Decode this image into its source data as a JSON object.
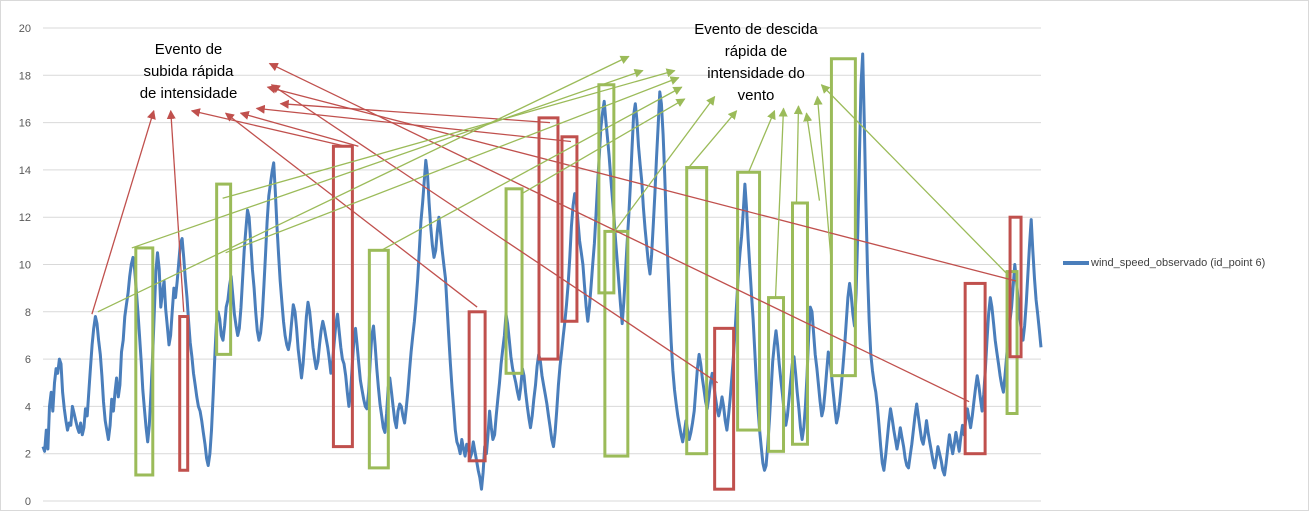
{
  "chart_data": {
    "type": "line",
    "series": [
      {
        "name": "wind_speed_observado (id_point 6)",
        "color": "#4a7ebb",
        "values": [
          2.3,
          2.1,
          3.0,
          2.2,
          4.0,
          4.6,
          3.8,
          5.0,
          5.6,
          5.4,
          6.0,
          5.8,
          4.6,
          3.9,
          3.4,
          3.0,
          3.3,
          3.2,
          4.0,
          3.7,
          3.4,
          3.1,
          2.9,
          3.3,
          2.8,
          3.1,
          3.9,
          3.6,
          4.6,
          5.6,
          6.6,
          7.3,
          7.8,
          7.5,
          6.8,
          6.2,
          5.3,
          4.2,
          3.4,
          3.0,
          2.6,
          3.2,
          4.3,
          3.8,
          4.6,
          5.2,
          4.4,
          4.9,
          6.3,
          6.8,
          7.8,
          8.3,
          8.8,
          9.5,
          10.0,
          10.3,
          9.8,
          8.9,
          8.0,
          7.0,
          5.9,
          4.7,
          3.9,
          3.1,
          2.5,
          3.2,
          4.6,
          6.1,
          8.0,
          9.7,
          10.5,
          9.8,
          8.2,
          8.8,
          9.3,
          8.1,
          7.4,
          6.6,
          7.0,
          8.0,
          9.0,
          8.6,
          9.3,
          10.1,
          10.9,
          11.1,
          10.3,
          9.4,
          8.6,
          7.6,
          6.7,
          6.1,
          5.4,
          4.9,
          4.4,
          4.0,
          3.8,
          3.4,
          2.9,
          2.4,
          1.8,
          1.5,
          2.0,
          3.0,
          4.5,
          6.1,
          7.5,
          8.0,
          7.7,
          7.0,
          6.8,
          7.4,
          8.2,
          8.5,
          9.1,
          9.5,
          8.7,
          7.9,
          7.4,
          7.0,
          7.3,
          8.2,
          9.4,
          10.6,
          11.5,
          12.3,
          12.0,
          10.9,
          9.8,
          9.0,
          8.0,
          7.2,
          6.8,
          7.1,
          7.8,
          9.1,
          10.4,
          11.8,
          12.9,
          13.4,
          13.9,
          14.3,
          13.1,
          11.6,
          10.4,
          9.3,
          8.4,
          7.6,
          7.0,
          6.6,
          6.4,
          6.8,
          7.6,
          8.3,
          8.0,
          7.3,
          6.4,
          5.8,
          5.2,
          5.8,
          6.8,
          7.8,
          8.4,
          8.0,
          7.3,
          6.5,
          6.0,
          5.6,
          5.9,
          6.6,
          7.2,
          7.6,
          7.3,
          6.9,
          6.5,
          6.0,
          5.4,
          5.9,
          6.7,
          7.5,
          7.9,
          7.2,
          6.5,
          6.0,
          5.8,
          5.3,
          4.6,
          4.0,
          4.6,
          5.7,
          6.8,
          7.3,
          6.6,
          5.8,
          5.1,
          4.7,
          4.3,
          4.0,
          3.9,
          4.6,
          5.9,
          7.0,
          7.4,
          6.6,
          5.6,
          4.8,
          4.1,
          3.6,
          3.1,
          2.9,
          3.7,
          4.8,
          5.2,
          4.6,
          4.0,
          3.4,
          3.1,
          3.8,
          4.1,
          4.0,
          3.6,
          3.3,
          3.9,
          4.6,
          5.5,
          6.3,
          7.0,
          7.6,
          8.4,
          9.4,
          10.6,
          11.8,
          12.6,
          13.5,
          14.4,
          13.8,
          12.6,
          11.6,
          10.8,
          10.3,
          10.6,
          11.4,
          12.0,
          11.3,
          10.6,
          10.0,
          9.4,
          8.2,
          7.0,
          5.8,
          4.8,
          3.9,
          3.0,
          2.5,
          2.3,
          2.0,
          2.6,
          2.2,
          1.9,
          2.4,
          2.2,
          1.8,
          2.0,
          2.5,
          2.1,
          1.7,
          1.3,
          1.0,
          0.5,
          1.2,
          2.3,
          2.0,
          2.8,
          3.8,
          3.1,
          2.6,
          2.8,
          3.6,
          4.3,
          5.0,
          5.8,
          6.4,
          7.0,
          7.9,
          7.5,
          6.8,
          6.1,
          5.6,
          5.3,
          5.0,
          4.6,
          4.3,
          4.8,
          5.6,
          5.3,
          4.6,
          4.0,
          3.5,
          3.1,
          3.6,
          4.3,
          4.9,
          5.7,
          6.2,
          5.9,
          5.3,
          4.9,
          4.5,
          4.1,
          3.6,
          3.1,
          2.6,
          2.3,
          2.9,
          3.8,
          4.9,
          5.7,
          6.3,
          7.0,
          7.6,
          8.3,
          9.2,
          10.3,
          11.6,
          12.5,
          13.0,
          12.6,
          11.8,
          11.0,
          10.5,
          10.0,
          9.1,
          8.2,
          7.6,
          8.2,
          9.1,
          10.0,
          10.9,
          12.1,
          13.4,
          14.6,
          15.8,
          16.4,
          16.9,
          16.1,
          15.4,
          14.6,
          13.7,
          12.8,
          12.0,
          11.0,
          10.1,
          9.2,
          8.3,
          7.5,
          8.4,
          9.6,
          10.9,
          12.0,
          13.3,
          14.9,
          16.3,
          16.8,
          16.1,
          15.0,
          14.2,
          13.5,
          12.4,
          11.5,
          10.8,
          10.1,
          9.6,
          10.4,
          11.7,
          13.0,
          14.5,
          15.9,
          17.3,
          16.8,
          15.5,
          13.8,
          11.8,
          9.9,
          8.2,
          6.7,
          5.5,
          4.7,
          4.1,
          3.6,
          3.2,
          2.8,
          2.5,
          2.9,
          3.4,
          3.0,
          2.6,
          2.9,
          3.3,
          3.8,
          4.7,
          5.6,
          6.2,
          5.8,
          5.2,
          4.7,
          4.2,
          3.9,
          4.4,
          5.0,
          5.4,
          4.9,
          4.4,
          3.9,
          3.6,
          3.9,
          4.4,
          4.0,
          3.4,
          3.0,
          3.6,
          4.3,
          5.2,
          6.1,
          7.2,
          8.4,
          9.6,
          10.5,
          11.2,
          12.2,
          13.4,
          12.4,
          11.1,
          9.9,
          8.8,
          7.7,
          6.4,
          5.1,
          3.9,
          3.0,
          2.3,
          1.6,
          1.3,
          1.5,
          2.4,
          3.4,
          4.6,
          5.9,
          6.6,
          7.2,
          6.6,
          5.8,
          5.1,
          4.5,
          3.8,
          3.2,
          3.6,
          4.3,
          5.1,
          5.8,
          6.1,
          5.4,
          4.6,
          3.9,
          3.1,
          2.6,
          3.1,
          4.0,
          5.3,
          7.0,
          8.2,
          8.0,
          7.1,
          6.2,
          5.6,
          4.9,
          4.2,
          3.6,
          3.9,
          4.6,
          5.5,
          6.3,
          6.0,
          5.3,
          4.6,
          3.9,
          3.3,
          3.6,
          4.2,
          4.9,
          5.7,
          6.6,
          7.6,
          8.6,
          9.2,
          8.7,
          7.9,
          7.4,
          8.8,
          11.4,
          14.5,
          17.6,
          18.9,
          16.0,
          12.6,
          9.6,
          7.6,
          6.2,
          5.5,
          5.0,
          4.6,
          4.0,
          3.2,
          2.3,
          1.6,
          1.3,
          1.9,
          2.6,
          3.3,
          3.9,
          3.5,
          3.0,
          2.6,
          2.2,
          2.6,
          3.1,
          2.7,
          2.3,
          1.8,
          1.5,
          1.4,
          1.9,
          2.4,
          3.0,
          3.6,
          4.1,
          3.6,
          3.1,
          2.6,
          2.4,
          2.8,
          3.4,
          2.9,
          2.5,
          2.1,
          1.7,
          1.4,
          1.8,
          2.3,
          2.0,
          1.7,
          1.3,
          1.1,
          1.6,
          2.2,
          2.8,
          2.4,
          2.0,
          2.4,
          2.9,
          2.5,
          2.1,
          2.7,
          3.2,
          2.8,
          3.4,
          3.9,
          3.5,
          3.1,
          3.6,
          4.2,
          4.8,
          5.3,
          4.9,
          4.3,
          3.8,
          4.5,
          5.6,
          6.8,
          7.9,
          8.6,
          8.2,
          7.5,
          6.8,
          6.3,
          5.8,
          5.3,
          4.9,
          4.6,
          5.3,
          6.1,
          7.0,
          7.6,
          8.2,
          9.1,
          10.0,
          9.3,
          8.5,
          7.8,
          7.2,
          6.8,
          7.4,
          8.4,
          9.6,
          10.8,
          11.9,
          10.6,
          9.4,
          8.5,
          7.9,
          7.2,
          6.5
        ]
      }
    ],
    "y_ticks": [
      "0",
      "2",
      "4",
      "6",
      "8",
      "10",
      "12",
      "14",
      "16",
      "18",
      "20"
    ],
    "ylim": [
      0,
      20
    ],
    "grid": true,
    "legend_position": "right",
    "annotations": {
      "rise": [
        "Evento de",
        "subida rápida",
        "de intensidade"
      ],
      "fall": [
        "Evento de descida",
        "rápida de",
        "intensidade do",
        "vento"
      ]
    },
    "red_color": "#c0504d",
    "green_color": "#9bbb59",
    "red_boxes": [
      {
        "x0": 0.137,
        "x1": 0.145,
        "ymin": 1.3,
        "ymax": 7.8
      },
      {
        "x0": 0.291,
        "x1": 0.31,
        "ymin": 2.3,
        "ymax": 15.0
      },
      {
        "x0": 0.427,
        "x1": 0.443,
        "ymin": 1.7,
        "ymax": 8.0
      },
      {
        "x0": 0.497,
        "x1": 0.516,
        "ymin": 6.0,
        "ymax": 16.2
      },
      {
        "x0": 0.52,
        "x1": 0.535,
        "ymin": 7.6,
        "ymax": 15.4
      },
      {
        "x0": 0.673,
        "x1": 0.692,
        "ymin": 0.5,
        "ymax": 7.3
      },
      {
        "x0": 0.924,
        "x1": 0.944,
        "ymin": 2.0,
        "ymax": 9.2
      },
      {
        "x0": 0.969,
        "x1": 0.98,
        "ymin": 6.1,
        "ymax": 12.0
      }
    ],
    "green_boxes": [
      {
        "x0": 0.093,
        "x1": 0.11,
        "ymin": 1.1,
        "ymax": 10.7
      },
      {
        "x0": 0.174,
        "x1": 0.188,
        "ymin": 6.2,
        "ymax": 13.4
      },
      {
        "x0": 0.327,
        "x1": 0.346,
        "ymin": 1.4,
        "ymax": 10.6
      },
      {
        "x0": 0.464,
        "x1": 0.48,
        "ymin": 5.4,
        "ymax": 13.2
      },
      {
        "x0": 0.557,
        "x1": 0.572,
        "ymin": 8.8,
        "ymax": 17.6
      },
      {
        "x0": 0.563,
        "x1": 0.586,
        "ymin": 1.9,
        "ymax": 11.4
      },
      {
        "x0": 0.645,
        "x1": 0.665,
        "ymin": 2.0,
        "ymax": 14.1
      },
      {
        "x0": 0.696,
        "x1": 0.718,
        "ymin": 3.0,
        "ymax": 13.9
      },
      {
        "x0": 0.727,
        "x1": 0.742,
        "ymin": 2.1,
        "ymax": 8.6
      },
      {
        "x0": 0.751,
        "x1": 0.766,
        "ymin": 2.4,
        "ymax": 12.6
      },
      {
        "x0": 0.79,
        "x1": 0.814,
        "ymin": 5.3,
        "ymax": 18.7
      },
      {
        "x0": 0.966,
        "x1": 0.976,
        "ymin": 3.7,
        "ymax": 9.7
      }
    ],
    "red_arrows": [
      {
        "x0": 0.049,
        "y0": 7.9,
        "x1": 0.111,
        "y1": 16.5
      },
      {
        "x0": 0.141,
        "y0": 8.0,
        "x1": 0.128,
        "y1": 16.5
      },
      {
        "x0": 0.303,
        "y0": 15.0,
        "x1": 0.149,
        "y1": 16.5
      },
      {
        "x0": 0.435,
        "y0": 8.2,
        "x1": 0.183,
        "y1": 16.4
      },
      {
        "x0": 0.316,
        "y0": 15.0,
        "x1": 0.198,
        "y1": 16.4
      },
      {
        "x0": 0.529,
        "y0": 15.2,
        "x1": 0.214,
        "y1": 16.6
      },
      {
        "x0": 0.508,
        "y0": 16.0,
        "x1": 0.238,
        "y1": 16.8
      },
      {
        "x0": 0.676,
        "y0": 5.0,
        "x1": 0.229,
        "y1": 17.6
      },
      {
        "x0": 0.928,
        "y0": 4.2,
        "x1": 0.227,
        "y1": 18.5
      },
      {
        "x0": 0.975,
        "y0": 9.3,
        "x1": 0.225,
        "y1": 17.5
      }
    ],
    "green_arrows": [
      {
        "x0": 0.055,
        "y0": 8.0,
        "x1": 0.587,
        "y1": 18.8
      },
      {
        "x0": 0.089,
        "y0": 10.7,
        "x1": 0.601,
        "y1": 18.2
      },
      {
        "x0": 0.18,
        "y0": 12.8,
        "x1": 0.633,
        "y1": 18.2
      },
      {
        "x0": 0.183,
        "y0": 10.5,
        "x1": 0.637,
        "y1": 17.9
      },
      {
        "x0": 0.339,
        "y0": 10.6,
        "x1": 0.64,
        "y1": 17.5
      },
      {
        "x0": 0.48,
        "y0": 13.0,
        "x1": 0.643,
        "y1": 17.0
      },
      {
        "x0": 0.571,
        "y0": 11.3,
        "x1": 0.673,
        "y1": 17.1
      },
      {
        "x0": 0.645,
        "y0": 14.0,
        "x1": 0.695,
        "y1": 16.5
      },
      {
        "x0": 0.707,
        "y0": 13.9,
        "x1": 0.733,
        "y1": 16.5
      },
      {
        "x0": 0.734,
        "y0": 8.6,
        "x1": 0.742,
        "y1": 16.6
      },
      {
        "x0": 0.755,
        "y0": 12.6,
        "x1": 0.757,
        "y1": 16.7
      },
      {
        "x0": 0.778,
        "y0": 12.7,
        "x1": 0.765,
        "y1": 16.4
      },
      {
        "x0": 0.79,
        "y0": 10.0,
        "x1": 0.776,
        "y1": 17.1
      },
      {
        "x0": 0.966,
        "y0": 9.6,
        "x1": 0.78,
        "y1": 17.6
      }
    ]
  }
}
